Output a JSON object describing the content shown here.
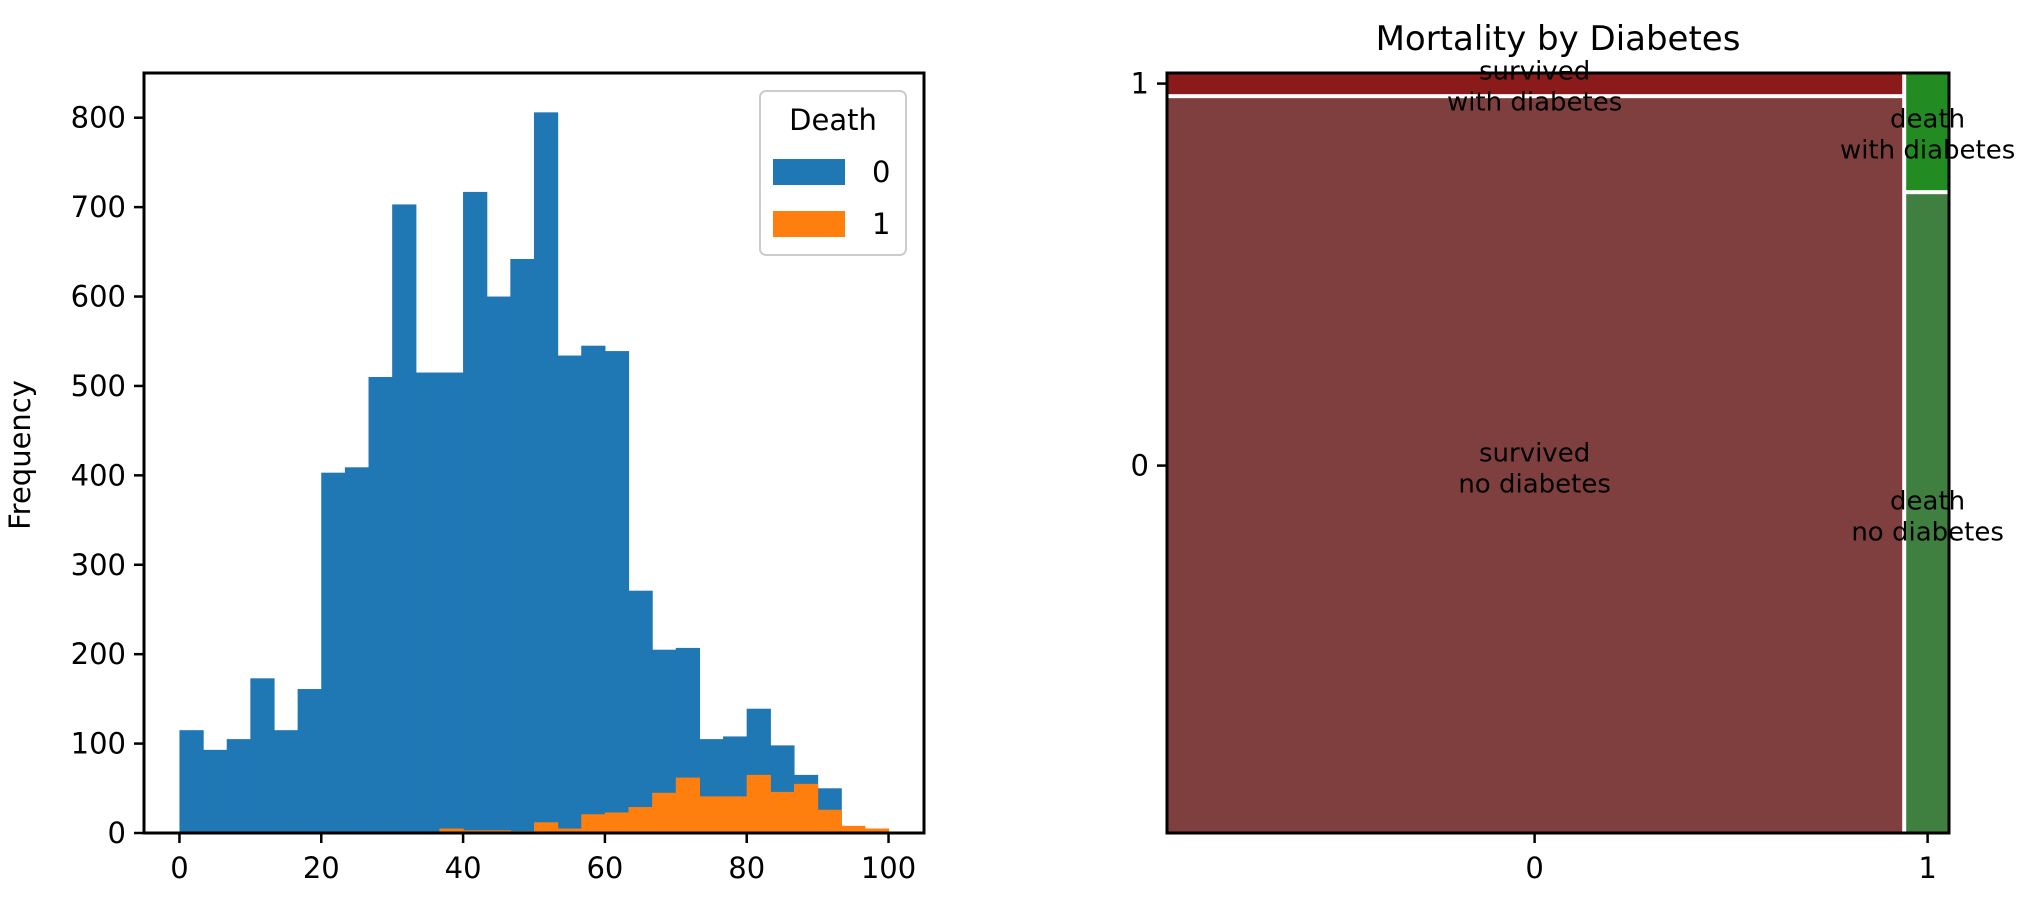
{
  "chart_data": [
    {
      "type": "bar",
      "subtype": "histogram",
      "title": "",
      "xlabel": "",
      "ylabel": "Frequency",
      "xlim": [
        -5,
        105
      ],
      "ylim": [
        0,
        850
      ],
      "xticks": [
        0,
        20,
        40,
        60,
        80,
        100
      ],
      "yticks": [
        0,
        100,
        200,
        300,
        400,
        500,
        600,
        700,
        800
      ],
      "legend": {
        "title": "Death",
        "position": "top-right",
        "entries": [
          "0",
          "1"
        ]
      },
      "bins": {
        "start": 0,
        "width": 3.333,
        "count": 30
      },
      "series": [
        {
          "name": "0",
          "color": "#1f77b4",
          "values": [
            115,
            93,
            105,
            173,
            115,
            161,
            403,
            409,
            510,
            703,
            515,
            515,
            717,
            600,
            642,
            806,
            534,
            545,
            539,
            271,
            205,
            207,
            105,
            108,
            139,
            98,
            65,
            50,
            0,
            0
          ]
        },
        {
          "name": "1",
          "color": "#ff7f0e",
          "values": [
            0,
            0,
            0,
            0,
            0,
            0,
            0,
            0,
            0,
            0,
            0,
            5,
            3,
            3,
            2,
            12,
            5,
            21,
            23,
            29,
            45,
            62,
            41,
            41,
            65,
            46,
            55,
            26,
            8,
            5
          ]
        }
      ]
    },
    {
      "type": "mosaic",
      "title": "Mortality by Diabetes",
      "xticks": [
        "0",
        "1"
      ],
      "yticks": [
        "0",
        "1"
      ],
      "cells": [
        {
          "label_line1": "survived",
          "label_line2": "no diabetes",
          "color": "#7f3f3f",
          "col": 0,
          "row": 0,
          "col_frac": 0.945,
          "row_frac": 0.972
        },
        {
          "label_line1": "survived",
          "label_line2": "with diabetes",
          "color": "#8b1a1a",
          "col": 0,
          "row": 1,
          "col_frac": 0.945,
          "row_frac": 0.028
        },
        {
          "label_line1": "death",
          "label_line2": "no diabetes",
          "color": "#3f7f3f",
          "col": 1,
          "row": 0,
          "col_frac": 0.055,
          "row_frac": 0.845
        },
        {
          "label_line1": "death",
          "label_line2": "with diabetes",
          "color": "#228b22",
          "col": 1,
          "row": 1,
          "col_frac": 0.055,
          "row_frac": 0.155
        }
      ]
    }
  ]
}
